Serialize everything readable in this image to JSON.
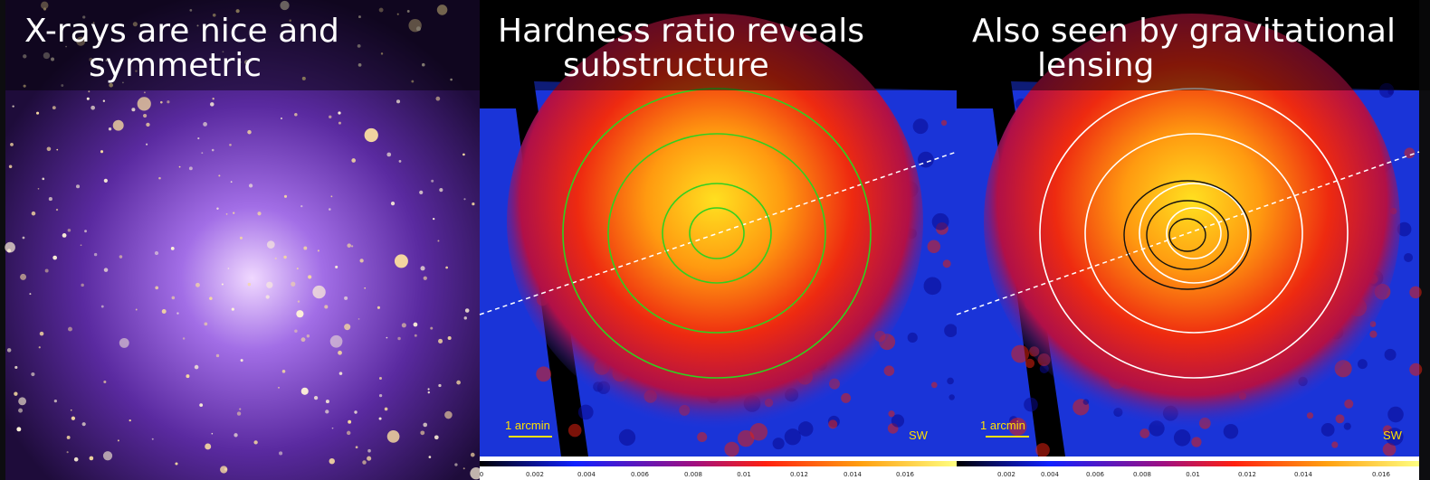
{
  "panels": [
    {
      "title": [
        "X-rays are nice and",
        "symmetric"
      ]
    },
    {
      "title": [
        "Hardness ratio reveals",
        "substructure"
      ],
      "scale_label": "1 arcmin",
      "direction": "SW",
      "colorbar_ticks": [
        "0",
        "0.002",
        "0.004",
        "0.006",
        "0.008",
        "0.01",
        "0.012",
        "0.014",
        "0.016"
      ]
    },
    {
      "title": [
        "Also seen by gravitational",
        "lensing"
      ],
      "scale_label": "1 arcmin",
      "direction": "SW",
      "colorbar_ticks": [
        "0.002",
        "0.004",
        "0.006",
        "0.008",
        "0.01",
        "0.012",
        "0.014",
        "0.016"
      ]
    }
  ]
}
